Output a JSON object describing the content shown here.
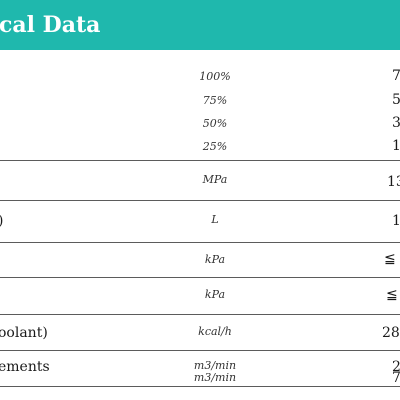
{
  "header": {
    "title": "cal Data"
  },
  "rows": [
    {
      "label": "",
      "lines": [
        {
          "unit": "100%",
          "value": "7"
        },
        {
          "unit": "75%",
          "value": "5"
        },
        {
          "unit": "50%",
          "value": "3"
        },
        {
          "unit": "25%",
          "value": "1"
        }
      ]
    },
    {
      "label": "",
      "unit": "MPa",
      "value": "13"
    },
    {
      "label": ")",
      "unit": "L",
      "value": "1"
    },
    {
      "label": "",
      "unit": "kPa",
      "value": "≦"
    },
    {
      "label": "",
      "unit": "kPa",
      "value": "≦"
    },
    {
      "label": "oolant)",
      "unit": "kcal/h",
      "value": "28"
    },
    {
      "label": "ements",
      "unit": "m3/min",
      "value": "2"
    },
    {
      "label": "",
      "unit": "m3/min",
      "value": "7"
    }
  ],
  "colors": {
    "header_bg": "#1fb8ad",
    "header_text": "#ffffff",
    "rule": "#5b5b5b"
  }
}
